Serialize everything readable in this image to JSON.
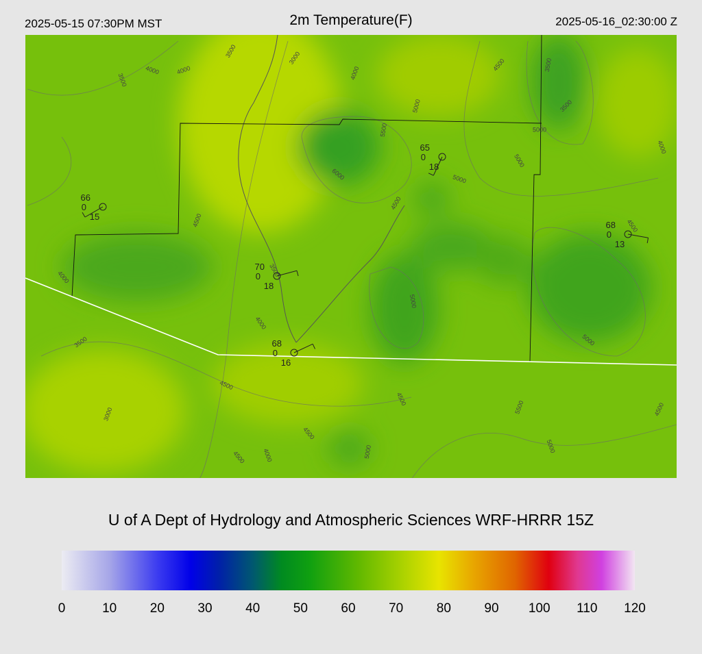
{
  "header": {
    "left": "2025-05-15 07:30PM MST",
    "title": "2m Temperature(F)",
    "right": "2025-05-16_02:30:00 Z"
  },
  "contour_labels": [
    "3500",
    "3000",
    "4000",
    "4000",
    "3500",
    "4000",
    "4500",
    "3500",
    "5000",
    "3500",
    "5500",
    "5000",
    "6000",
    "5000",
    "5000",
    "4000",
    "4500",
    "4500",
    "4500",
    "4000",
    "3500",
    "5000",
    "4000",
    "3500",
    "5000",
    "4500",
    "4500",
    "5500",
    "4500",
    "3000",
    "4500",
    "4500",
    "4000",
    "5000",
    "5000"
  ],
  "stations": [
    {
      "temp": "66",
      "dew": "0",
      "wind": "15"
    },
    {
      "temp": "65",
      "dew": "0",
      "wind": "18"
    },
    {
      "temp": "68",
      "dew": "0",
      "wind": "13"
    },
    {
      "temp": "70",
      "dew": "0",
      "wind": "18"
    },
    {
      "temp": "68",
      "dew": "0",
      "wind": "16"
    }
  ],
  "footer": "U of A Dept of Hydrology and Atmospheric Sciences WRF-HRRR 15Z",
  "colorbar": {
    "range": [
      0,
      120
    ],
    "ticks": [
      0,
      10,
      20,
      30,
      40,
      50,
      60,
      70,
      80,
      90,
      100,
      110,
      120
    ],
    "stops": [
      {
        "value": 0,
        "color": "#ececf2"
      },
      {
        "value": 10,
        "color": "#a6a6e8"
      },
      {
        "value": 20,
        "color": "#3c3cf0"
      },
      {
        "value": 27,
        "color": "#0000e8"
      },
      {
        "value": 33,
        "color": "#0020a8"
      },
      {
        "value": 40,
        "color": "#005870"
      },
      {
        "value": 46,
        "color": "#008a20"
      },
      {
        "value": 52,
        "color": "#10a010"
      },
      {
        "value": 62,
        "color": "#60b800"
      },
      {
        "value": 72,
        "color": "#b0d400"
      },
      {
        "value": 79,
        "color": "#e8e400"
      },
      {
        "value": 86,
        "color": "#e8a800"
      },
      {
        "value": 95,
        "color": "#e06400"
      },
      {
        "value": 102,
        "color": "#e00010"
      },
      {
        "value": 108,
        "color": "#e03890"
      },
      {
        "value": 113,
        "color": "#d040e0"
      },
      {
        "value": 120,
        "color": "#f2e6f2"
      }
    ]
  }
}
